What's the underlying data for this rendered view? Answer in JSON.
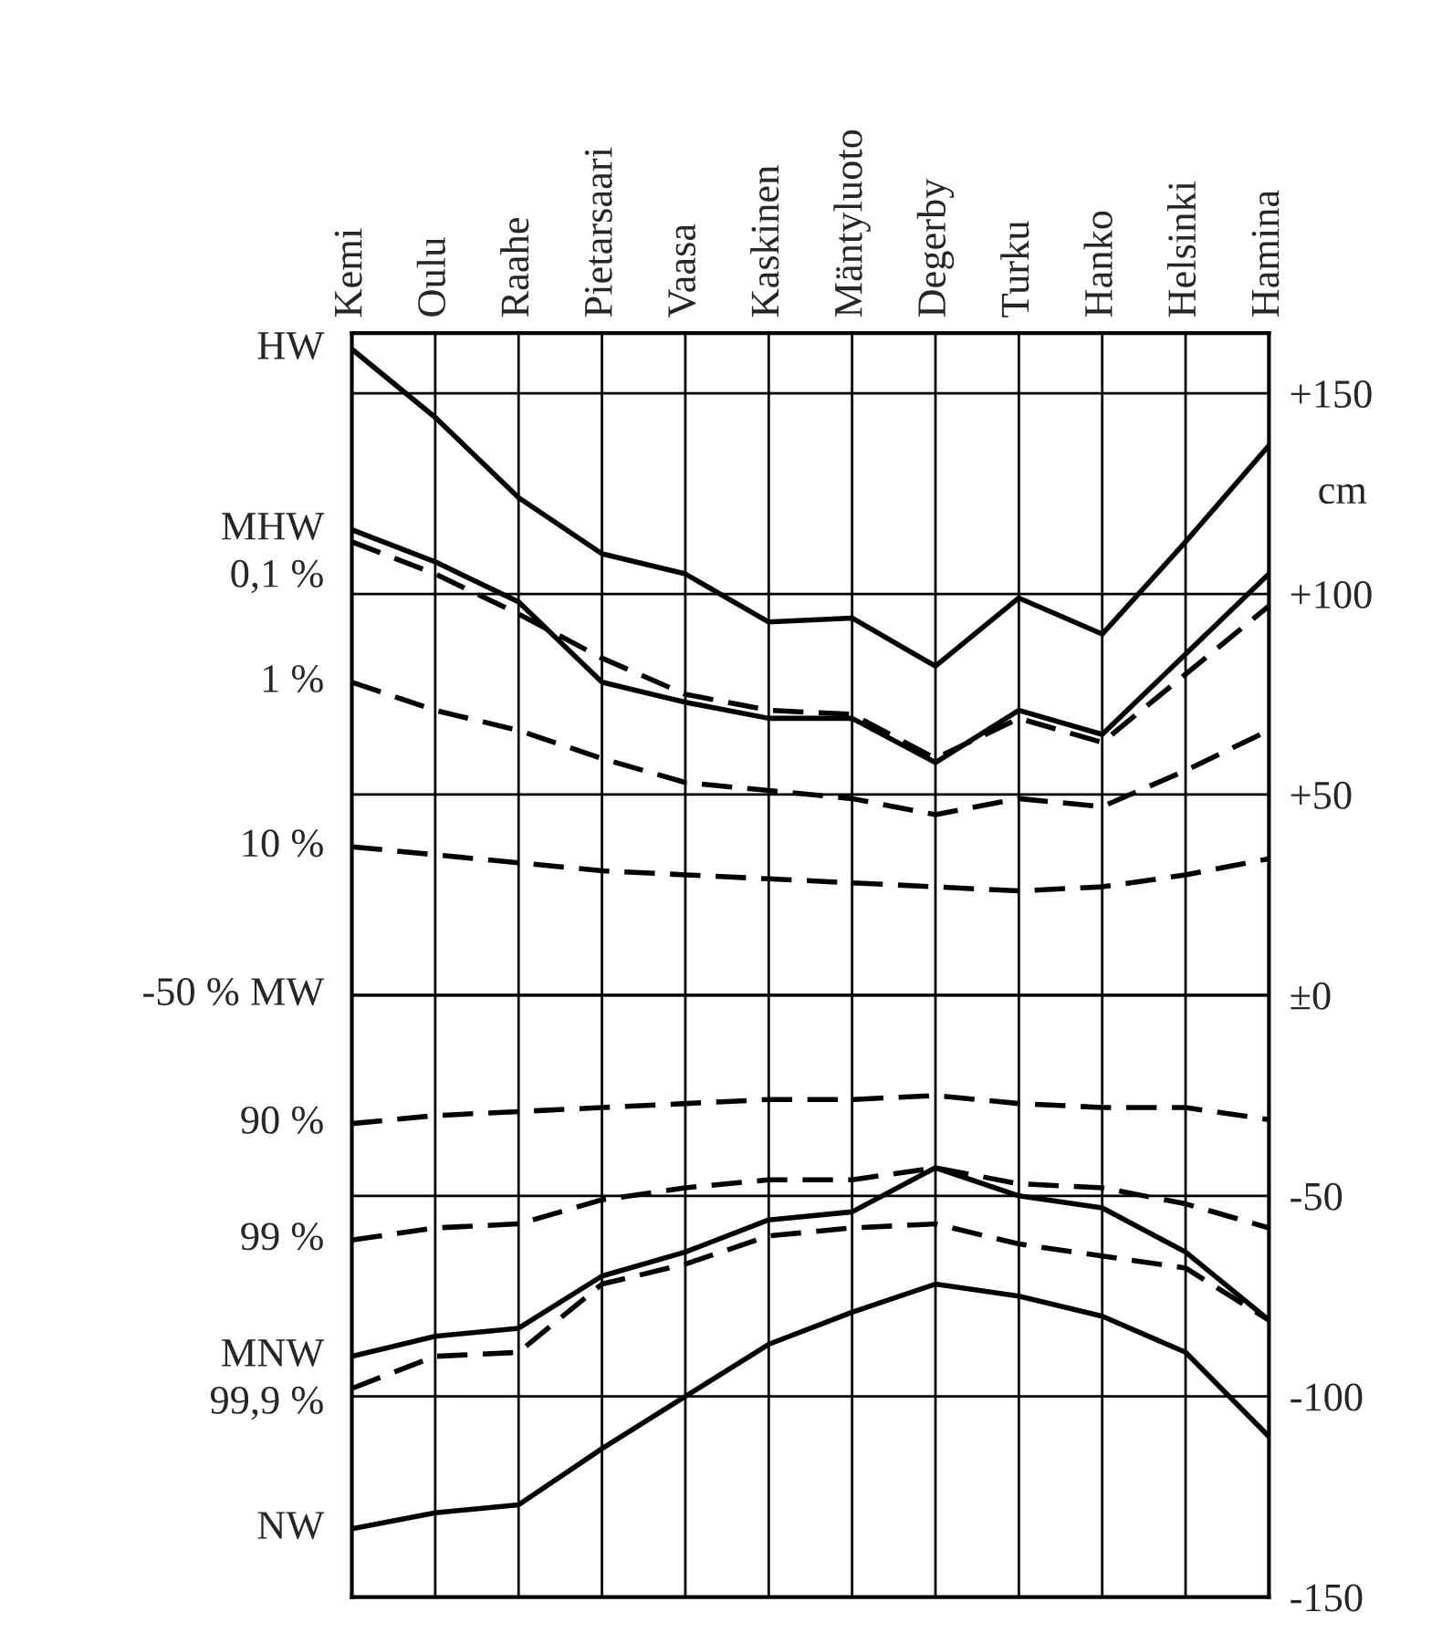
{
  "chart_data": {
    "type": "line",
    "categories": [
      "Kemi",
      "Oulu",
      "Raahe",
      "Pietarsaari",
      "Vaasa",
      "Kaskinen",
      "Mäntyluoto",
      "Degerby",
      "Turku",
      "Hanko",
      "Helsinki",
      "Hamina"
    ],
    "series": [
      {
        "name": "HW",
        "color": "#000000",
        "line_style": "solid",
        "values": [
          161,
          144,
          124,
          110,
          105,
          93,
          94,
          82,
          99,
          90,
          113,
          137
        ]
      },
      {
        "name": "MHW",
        "color": "#000000",
        "line_style": "solid",
        "values": [
          116,
          108,
          98,
          78,
          73,
          69,
          69,
          58,
          71,
          65,
          85,
          105
        ]
      },
      {
        "name": "0,1 %",
        "color": "#000000",
        "line_style": "dashed",
        "values": [
          113,
          105,
          95,
          84,
          75,
          71,
          70,
          59,
          69,
          63,
          80,
          97
        ]
      },
      {
        "name": "1 %",
        "color": "#000000",
        "line_style": "dashed",
        "values": [
          78,
          71,
          66,
          59,
          53,
          51,
          49,
          45,
          49,
          47,
          56,
          66
        ]
      },
      {
        "name": "10 %",
        "color": "#000000",
        "line_style": "dashed",
        "values": [
          37,
          35,
          33,
          31,
          30,
          29,
          28,
          27,
          26,
          27,
          30,
          34
        ]
      },
      {
        "name": "90 %",
        "color": "#000000",
        "line_style": "dashed",
        "values": [
          -32,
          -30,
          -29,
          -28,
          -27,
          -26,
          -26,
          -25,
          -27,
          -28,
          -28,
          -31
        ]
      },
      {
        "name": "99 %",
        "color": "#000000",
        "line_style": "dashed",
        "values": [
          -61,
          -58,
          -57,
          -51,
          -48,
          -46,
          -46,
          -43,
          -47,
          -48,
          -52,
          -58
        ]
      },
      {
        "name": "MNW",
        "color": "#000000",
        "line_style": "solid",
        "values": [
          -90,
          -85,
          -83,
          -70,
          -64,
          -56,
          -54,
          -43,
          -50,
          -53,
          -64,
          -81
        ]
      },
      {
        "name": "99,9 %",
        "color": "#000000",
        "line_style": "dashed",
        "values": [
          -98,
          -90,
          -89,
          -72,
          -67,
          -60,
          -58,
          -57,
          -62,
          -65,
          -68,
          -81
        ]
      },
      {
        "name": "NW",
        "color": "#000000",
        "line_style": "solid",
        "values": [
          -133,
          -129,
          -127,
          -113,
          -100,
          -87,
          -79,
          -72,
          -75,
          -80,
          -89,
          -110
        ]
      }
    ],
    "ylim": [
      -150,
      165
    ],
    "yticks": [
      {
        "value": 150,
        "label": "+150"
      },
      {
        "value": 100,
        "label": "+100"
      },
      {
        "value": 50,
        "label": "+50"
      },
      {
        "value": 0,
        "label": "±0"
      },
      -50,
      -100,
      -150
    ],
    "ylabel": "cm",
    "ref_lines": [
      {
        "axis": "y",
        "value": 0,
        "label": "-50 % MW",
        "color": "#000000"
      }
    ],
    "grid": true,
    "legend": false
  }
}
